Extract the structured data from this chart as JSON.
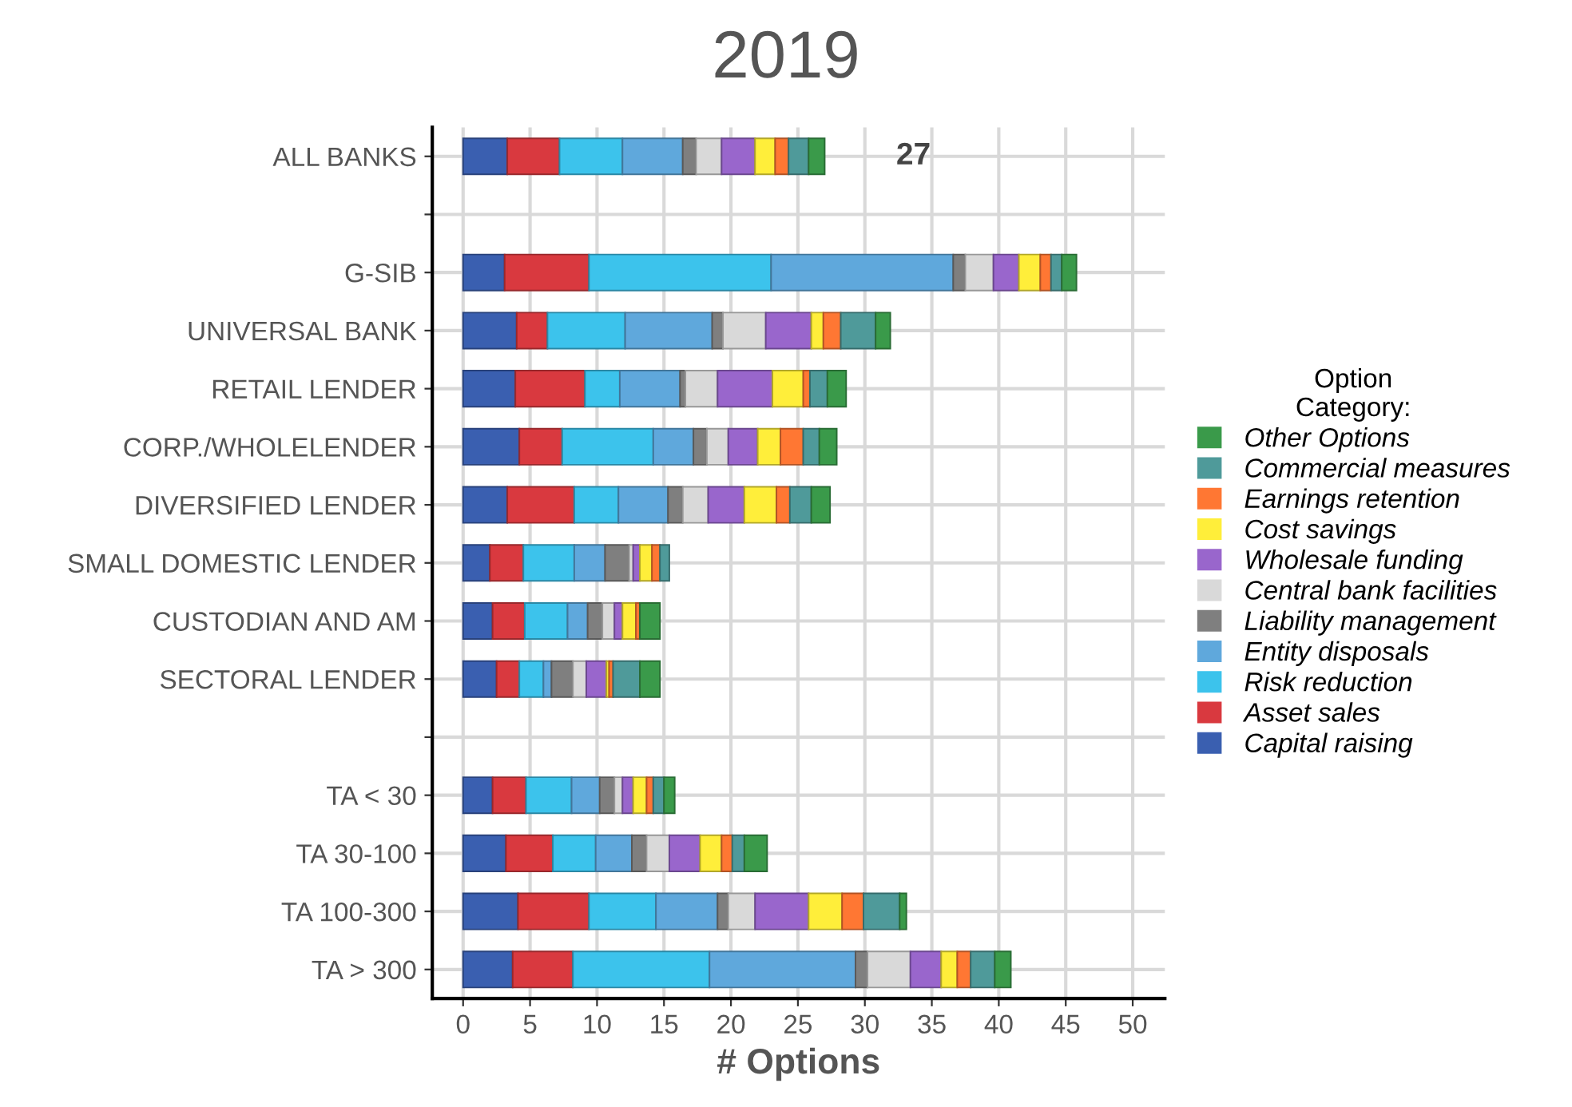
{
  "chart_data": {
    "type": "bar",
    "orientation": "horizontal",
    "stacked": true,
    "title": "2019",
    "xlabel": "# Options",
    "legend_title": "Option\nCategory:",
    "categories": [
      "ALL BANKS",
      null,
      "G-SIB",
      "UNIVERSAL BANK",
      "RETAIL LENDER",
      "CORP./WHOLELENDER",
      "DIVERSIFIED LENDER",
      "SMALL DOMESTIC LENDER",
      "CUSTODIAN AND AM",
      "SECTORAL LENDER",
      null,
      "TA < 30",
      "TA 30-100",
      "TA 100-300",
      "TA > 300"
    ],
    "series": [
      {
        "name": "Capital raising",
        "color": "#3a5fb0",
        "values": [
          3.3,
          null,
          3.1,
          4.0,
          3.9,
          4.2,
          3.3,
          2.0,
          2.2,
          2.5,
          null,
          2.2,
          3.2,
          4.1,
          3.7
        ]
      },
      {
        "name": "Asset sales",
        "color": "#d9393f",
        "values": [
          3.9,
          null,
          6.3,
          2.3,
          5.2,
          3.2,
          5.0,
          2.5,
          2.4,
          1.7,
          null,
          2.5,
          3.5,
          5.3,
          4.5
        ]
      },
      {
        "name": "Risk reduction",
        "color": "#3cc3ec",
        "values": [
          4.7,
          null,
          13.6,
          5.8,
          2.6,
          6.8,
          3.3,
          3.8,
          3.2,
          1.8,
          null,
          3.4,
          3.2,
          5.0,
          10.2
        ]
      },
      {
        "name": "Entity disposals",
        "color": "#5fa8dc",
        "values": [
          4.5,
          null,
          13.6,
          6.5,
          4.5,
          3.0,
          3.7,
          2.3,
          1.5,
          0.6,
          null,
          2.1,
          2.7,
          4.6,
          10.9
        ]
      },
      {
        "name": "Liability management",
        "color": "#7f7f7f",
        "values": [
          1.0,
          null,
          0.9,
          0.8,
          0.4,
          1.0,
          1.1,
          1.8,
          1.1,
          1.6,
          null,
          1.1,
          1.1,
          0.8,
          0.9
        ]
      },
      {
        "name": "Central bank facilities",
        "color": "#d9d9d9",
        "values": [
          1.9,
          null,
          2.1,
          3.2,
          2.4,
          1.6,
          1.9,
          0.3,
          0.9,
          1.0,
          null,
          0.6,
          1.7,
          2.0,
          3.2
        ]
      },
      {
        "name": "Wholesale funding",
        "color": "#9966cc",
        "values": [
          2.5,
          null,
          1.9,
          3.4,
          4.1,
          2.2,
          2.7,
          0.5,
          0.6,
          1.5,
          null,
          0.8,
          2.3,
          4.0,
          2.3
        ]
      },
      {
        "name": "Cost savings",
        "color": "#ffee3a",
        "values": [
          1.5,
          null,
          1.6,
          0.9,
          2.3,
          1.7,
          2.4,
          0.9,
          1.0,
          0.2,
          null,
          1.0,
          1.6,
          2.5,
          1.2
        ]
      },
      {
        "name": "Earnings retention",
        "color": "#ff7733",
        "values": [
          1.0,
          null,
          0.8,
          1.3,
          0.5,
          1.7,
          1.0,
          0.6,
          0.3,
          0.3,
          null,
          0.5,
          0.8,
          1.6,
          1.0
        ]
      },
      {
        "name": "Commercial measures",
        "color": "#4f9a9a",
        "values": [
          1.5,
          null,
          0.8,
          2.6,
          1.3,
          1.2,
          1.6,
          0.7,
          null,
          2.0,
          null,
          0.8,
          0.9,
          2.7,
          1.8
        ]
      },
      {
        "name": "Other Options",
        "color": "#3a9a4a",
        "values": [
          1.2,
          null,
          1.1,
          1.1,
          1.4,
          1.3,
          1.4,
          null,
          1.5,
          1.5,
          null,
          0.8,
          1.7,
          0.5,
          1.2
        ]
      }
    ],
    "annotations": [
      {
        "text": "27",
        "x": 27,
        "y": "ALL BANKS"
      }
    ],
    "xlim": [
      -2.3,
      52.4
    ],
    "xticks": [
      0,
      5,
      10,
      15,
      20,
      25,
      30,
      35,
      40,
      45,
      50
    ],
    "grid": true,
    "legend": "right"
  }
}
